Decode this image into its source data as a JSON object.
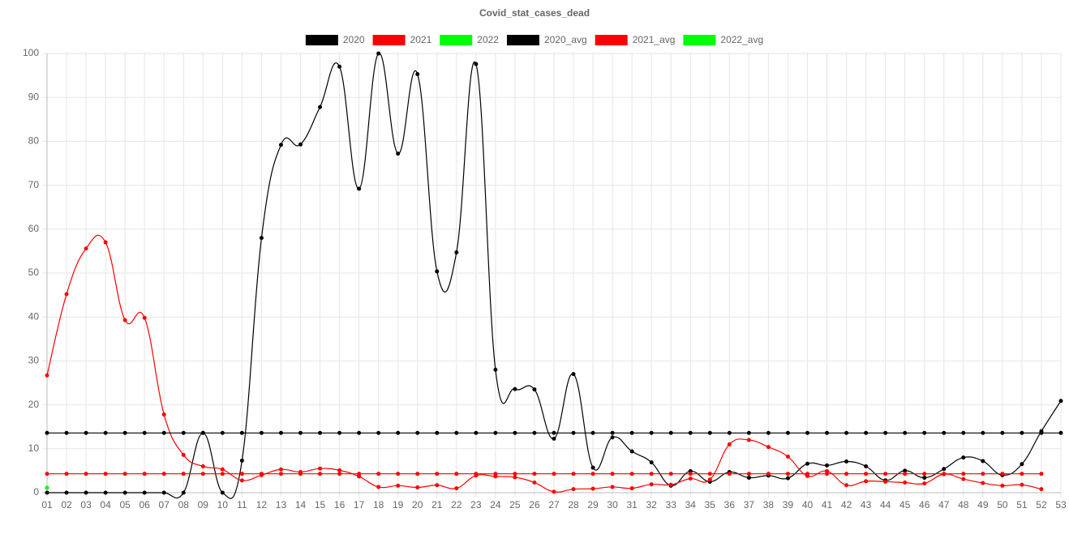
{
  "chart_data": {
    "type": "line",
    "title": "Covid_stat_cases_dead",
    "categories": [
      "01",
      "02",
      "03",
      "04",
      "05",
      "06",
      "07",
      "08",
      "09",
      "10",
      "11",
      "12",
      "13",
      "14",
      "15",
      "16",
      "17",
      "18",
      "19",
      "20",
      "21",
      "22",
      "23",
      "24",
      "25",
      "26",
      "27",
      "28",
      "29",
      "30",
      "31",
      "32",
      "33",
      "34",
      "35",
      "36",
      "37",
      "38",
      "39",
      "40",
      "41",
      "42",
      "43",
      "44",
      "45",
      "46",
      "47",
      "48",
      "49",
      "50",
      "51",
      "52",
      "53"
    ],
    "ylim": [
      0,
      100
    ],
    "yticks": [
      0,
      10,
      20,
      30,
      40,
      50,
      60,
      70,
      80,
      90,
      100
    ],
    "grid": true,
    "legend": "top",
    "series": [
      {
        "name": "2020",
        "color": "#000000",
        "values": [
          0,
          0,
          0,
          0,
          0,
          0,
          0,
          0,
          13.6,
          0,
          7.3,
          58,
          79.2,
          79.3,
          87.8,
          97,
          69.2,
          100,
          77.2,
          95.3,
          50.4,
          54.7,
          97.6,
          28,
          23.6,
          23.5,
          12.3,
          27,
          5.7,
          12.6,
          9.4,
          6.9,
          1.6,
          4.9,
          2.5,
          4.7,
          3.4,
          3.9,
          3.3,
          6.6,
          6.2,
          7.1,
          6,
          2.8,
          5,
          3.4,
          5.4,
          8,
          7.2,
          4,
          6.5,
          14,
          20.9
        ]
      },
      {
        "name": "2021",
        "color": "#ff0000",
        "values": [
          26.7,
          45.2,
          55.6,
          57,
          39.3,
          39.8,
          17.8,
          8.6,
          6,
          5.3,
          2.8,
          4,
          5.3,
          4.7,
          5.5,
          5.1,
          3.7,
          1.3,
          1.6,
          1.2,
          1.7,
          1,
          3.9,
          3.7,
          3.5,
          2.3,
          0.2,
          0.8,
          0.9,
          1.3,
          1,
          1.9,
          1.8,
          3.2,
          3,
          11,
          12,
          10.4,
          8.2,
          3.8,
          4.9,
          1.7,
          2.6,
          2.5,
          2.3,
          2.1,
          4.2,
          3.1,
          2.2,
          1.6,
          1.8,
          0.8,
          null
        ]
      },
      {
        "name": "2022",
        "color": "#00ff00",
        "values": [
          1.1,
          null,
          null,
          null,
          null,
          null,
          null,
          null,
          null,
          null,
          null,
          null,
          null,
          null,
          null,
          null,
          null,
          null,
          null,
          null,
          null,
          null,
          null,
          null,
          null,
          null,
          null,
          null,
          null,
          null,
          null,
          null,
          null,
          null,
          null,
          null,
          null,
          null,
          null,
          null,
          null,
          null,
          null,
          null,
          null,
          null,
          null,
          null,
          null,
          null,
          null,
          null,
          null
        ]
      },
      {
        "name": "2020_avg",
        "color": "#000000",
        "values": [
          13.6,
          13.6,
          13.6,
          13.6,
          13.6,
          13.6,
          13.6,
          13.6,
          13.6,
          13.6,
          13.6,
          13.6,
          13.6,
          13.6,
          13.6,
          13.6,
          13.6,
          13.6,
          13.6,
          13.6,
          13.6,
          13.6,
          13.6,
          13.6,
          13.6,
          13.6,
          13.6,
          13.6,
          13.6,
          13.6,
          13.6,
          13.6,
          13.6,
          13.6,
          13.6,
          13.6,
          13.6,
          13.6,
          13.6,
          13.6,
          13.6,
          13.6,
          13.6,
          13.6,
          13.6,
          13.6,
          13.6,
          13.6,
          13.6,
          13.6,
          13.6,
          13.6,
          13.6
        ]
      },
      {
        "name": "2021_avg",
        "color": "#ff0000",
        "values": [
          4.3,
          4.3,
          4.3,
          4.3,
          4.3,
          4.3,
          4.3,
          4.3,
          4.3,
          4.3,
          4.3,
          4.3,
          4.3,
          4.3,
          4.3,
          4.3,
          4.3,
          4.3,
          4.3,
          4.3,
          4.3,
          4.3,
          4.3,
          4.3,
          4.3,
          4.3,
          4.3,
          4.3,
          4.3,
          4.3,
          4.3,
          4.3,
          4.3,
          4.3,
          4.3,
          4.3,
          4.3,
          4.3,
          4.3,
          4.3,
          4.3,
          4.3,
          4.3,
          4.3,
          4.3,
          4.3,
          4.3,
          4.3,
          4.3,
          4.3,
          4.3,
          4.3,
          null
        ]
      },
      {
        "name": "2022_avg",
        "color": "#00ff00",
        "values": [
          1.1,
          null,
          null,
          null,
          null,
          null,
          null,
          null,
          null,
          null,
          null,
          null,
          null,
          null,
          null,
          null,
          null,
          null,
          null,
          null,
          null,
          null,
          null,
          null,
          null,
          null,
          null,
          null,
          null,
          null,
          null,
          null,
          null,
          null,
          null,
          null,
          null,
          null,
          null,
          null,
          null,
          null,
          null,
          null,
          null,
          null,
          null,
          null,
          null,
          null,
          null,
          null,
          null
        ]
      }
    ]
  }
}
